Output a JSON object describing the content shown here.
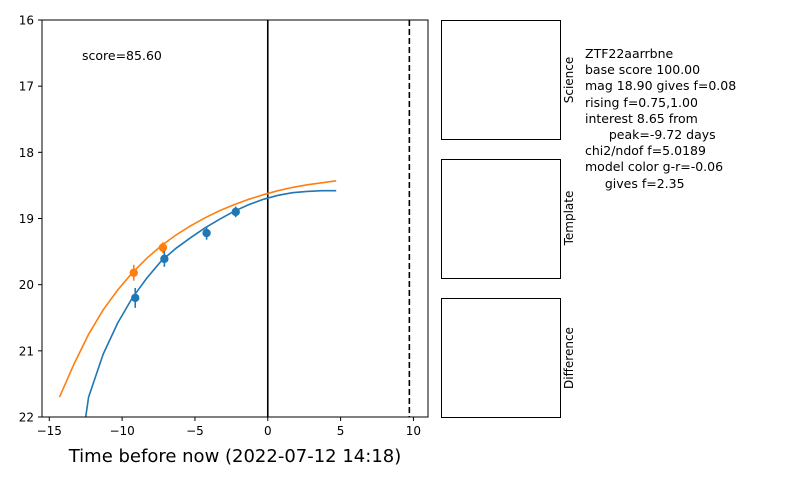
{
  "chart_data": {
    "type": "line",
    "xlabel": "Time before now (2022-07-12 14:18)",
    "ylabel": "",
    "xlim": [
      -15.5,
      11
    ],
    "ylim": [
      22,
      16
    ],
    "y_inverted": true,
    "xticks": [
      -15,
      -10,
      -5,
      0,
      5,
      10
    ],
    "yticks": [
      16,
      17,
      18,
      19,
      20,
      21,
      22
    ],
    "annotation": "score=85.60",
    "vlines": [
      {
        "x": 0,
        "style": "solid"
      },
      {
        "x": 9.72,
        "style": "dashed"
      }
    ],
    "series": [
      {
        "color": "#ff7f0e",
        "model_x": [
          -14.3,
          -13.3,
          -12.3,
          -11.3,
          -10.3,
          -9.3,
          -8.3,
          -7.3,
          -6.3,
          -5.3,
          -4.3,
          -3.3,
          -2.3,
          -1.3,
          -0.3,
          0.7,
          1.7,
          2.7,
          3.7,
          4.7
        ],
        "model_y": [
          21.7,
          21.2,
          20.75,
          20.38,
          20.08,
          19.82,
          19.6,
          19.41,
          19.25,
          19.11,
          18.99,
          18.88,
          18.79,
          18.71,
          18.64,
          18.58,
          18.53,
          18.49,
          18.46,
          18.43
        ],
        "points": [
          {
            "x": -9.2,
            "y": 19.82,
            "err": 0.12
          },
          {
            "x": -7.2,
            "y": 19.44,
            "err": 0.08
          }
        ]
      },
      {
        "color": "#1f77b4",
        "model_x": [
          -12.5,
          -12.3,
          -11.3,
          -10.3,
          -9.3,
          -8.3,
          -7.3,
          -6.3,
          -5.3,
          -4.3,
          -3.3,
          -2.3,
          -1.3,
          -0.3,
          0.7,
          1.7,
          2.7,
          3.7,
          4.7
        ],
        "model_y": [
          22.0,
          21.7,
          21.05,
          20.58,
          20.2,
          19.9,
          19.64,
          19.45,
          19.29,
          19.14,
          19.01,
          18.89,
          18.79,
          18.71,
          18.65,
          18.61,
          18.59,
          18.58,
          18.58
        ],
        "points": [
          {
            "x": -9.1,
            "y": 20.2,
            "err": 0.15
          },
          {
            "x": -7.1,
            "y": 19.61,
            "err": 0.12
          },
          {
            "x": -4.2,
            "y": 19.22,
            "err": 0.1
          },
          {
            "x": -2.2,
            "y": 18.9,
            "err": 0.08
          }
        ]
      }
    ]
  },
  "panels": {
    "science": "Science",
    "template": "Template",
    "difference": "Difference"
  },
  "info_lines": [
    "ZTF22aarrbne",
    "base score 100.00",
    "mag 18.90 gives f=0.08",
    "rising f=0.75,1.00",
    "interest 8.65 from",
    "      peak=-9.72 days",
    "chi2/ndof f=5.0189",
    "model color g-r=-0.06",
    "     gives f=2.35"
  ]
}
